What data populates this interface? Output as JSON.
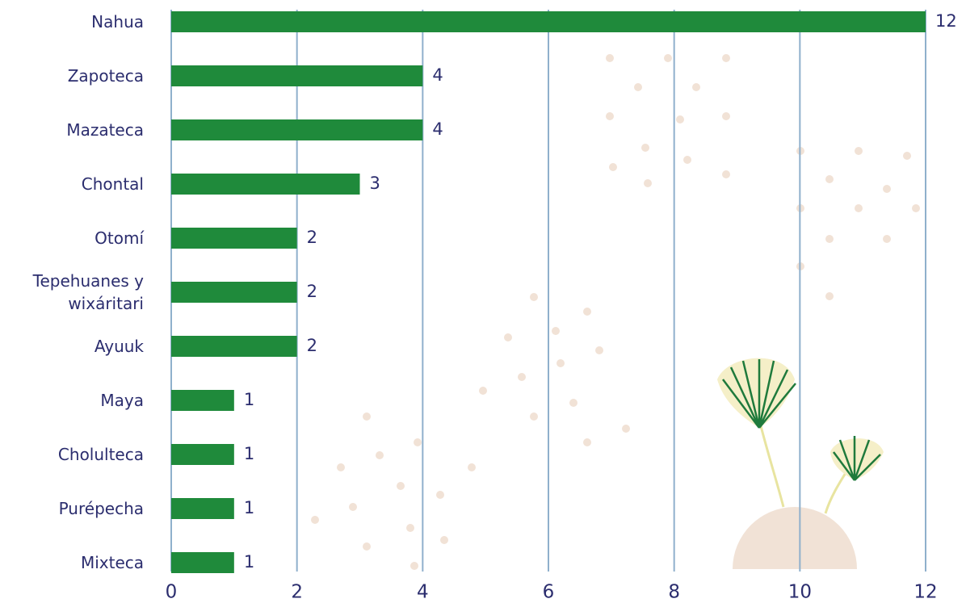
{
  "chart_data": {
    "type": "bar",
    "orientation": "horizontal",
    "categories": [
      "Nahua",
      "Zapoteca",
      "Mazateca",
      "Chontal",
      "Otomí",
      "Tepehuanes y wixáritari",
      "Ayuuk",
      "Maya",
      "Cholulteca",
      "Purépecha",
      "Mixteca"
    ],
    "values": [
      12,
      4,
      4,
      3,
      2,
      2,
      2,
      1,
      1,
      1,
      1
    ],
    "color": "#1f8a3b",
    "xlim": [
      0,
      12
    ],
    "xticks": [
      0,
      2,
      4,
      6,
      8,
      10,
      12
    ],
    "grid": true
  }
}
